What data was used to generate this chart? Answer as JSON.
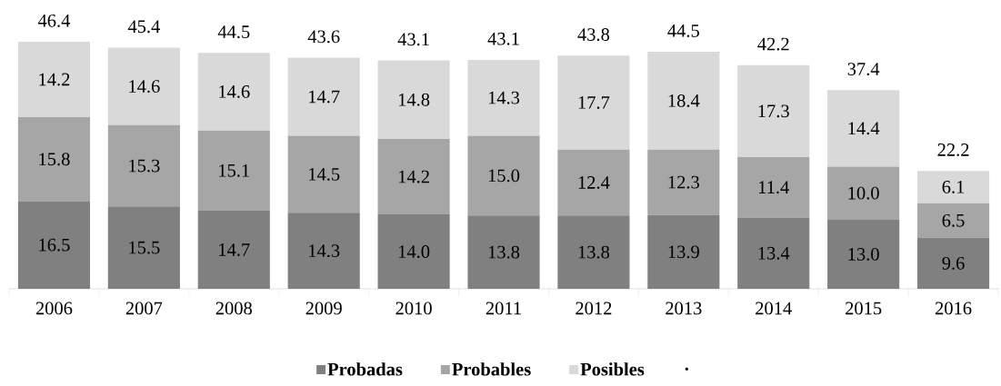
{
  "chart_data": {
    "type": "bar",
    "stacked": true,
    "categories": [
      "2006",
      "2007",
      "2008",
      "2009",
      "2010",
      "2011",
      "2012",
      "2013",
      "2014",
      "2015",
      "2016"
    ],
    "series": [
      {
        "name": "Probadas",
        "color": "#808080",
        "values": [
          16.5,
          15.5,
          14.7,
          14.3,
          14.0,
          13.8,
          13.8,
          13.9,
          13.4,
          13.0,
          9.6
        ],
        "value_labels": [
          "16.5",
          "15.5",
          "14.7",
          "14.3",
          "14.0",
          "13.8",
          "13.8",
          "13.9",
          "13.4",
          "13.0",
          "9.6"
        ]
      },
      {
        "name": "Probables",
        "color": "#a6a6a6",
        "values": [
          15.8,
          15.3,
          15.1,
          14.5,
          14.2,
          15.0,
          12.4,
          12.3,
          11.4,
          10.0,
          6.5
        ],
        "value_labels": [
          "15.8",
          "15.3",
          "15.1",
          "14.5",
          "14.2",
          "15.0",
          "12.4",
          "12.3",
          "11.4",
          "10.0",
          "6.5"
        ]
      },
      {
        "name": "Posibles",
        "color": "#d9d9d9",
        "values": [
          14.2,
          14.6,
          14.6,
          14.7,
          14.8,
          14.3,
          17.7,
          18.4,
          17.3,
          14.4,
          6.1
        ],
        "value_labels": [
          "14.2",
          "14.6",
          "14.6",
          "14.7",
          "14.8",
          "14.3",
          "17.7",
          "18.4",
          "17.3",
          "14.4",
          "6.1"
        ]
      }
    ],
    "totals": [
      "46.4",
      "45.4",
      "44.5",
      "43.6",
      "43.1",
      "43.1",
      "43.8",
      "44.5",
      "42.2",
      "37.4",
      "22.2"
    ],
    "legend": "bottom",
    "annotations": [
      "."
    ]
  }
}
